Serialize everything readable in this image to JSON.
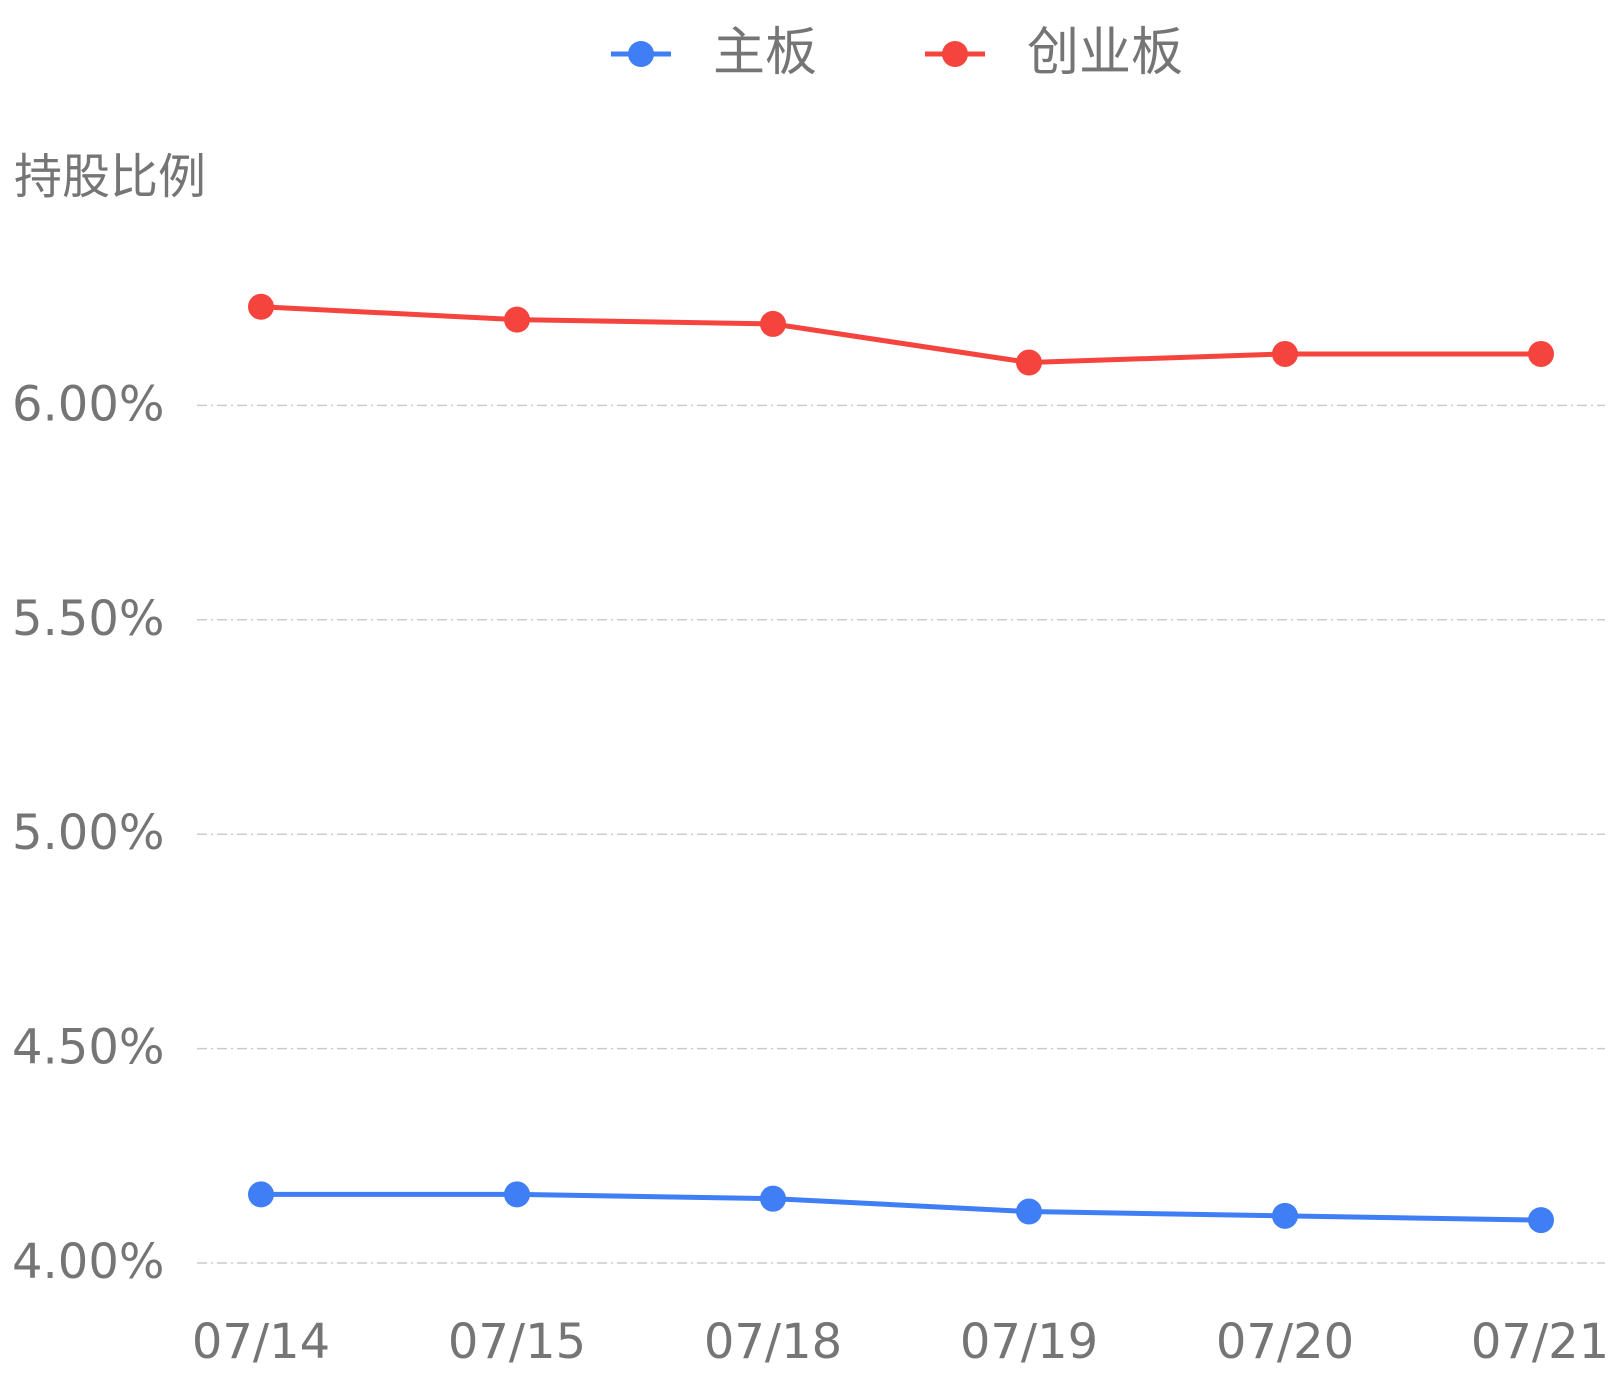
{
  "chart_data": {
    "type": "line",
    "y_label": "持股比例",
    "categories": [
      "07/14",
      "07/15",
      "07/18",
      "07/19",
      "07/20",
      "07/21"
    ],
    "series": [
      {
        "name": "主板",
        "color": "#3f7ef5",
        "values": [
          4.16,
          4.16,
          4.15,
          4.12,
          4.11,
          4.1
        ]
      },
      {
        "name": "创业板",
        "color": "#f5443d",
        "values": [
          6.23,
          6.2,
          6.19,
          6.1,
          6.12,
          6.12
        ]
      }
    ],
    "ylim": [
      4,
      6.5
    ],
    "yticks": [
      {
        "value": 4,
        "label": "4.00%"
      },
      {
        "value": 4.5,
        "label": "4.50%"
      },
      {
        "value": 5,
        "label": "5.00%"
      },
      {
        "value": 5.5,
        "label": "5.50%"
      },
      {
        "value": 6,
        "label": "6.00%"
      }
    ],
    "grid": true
  }
}
